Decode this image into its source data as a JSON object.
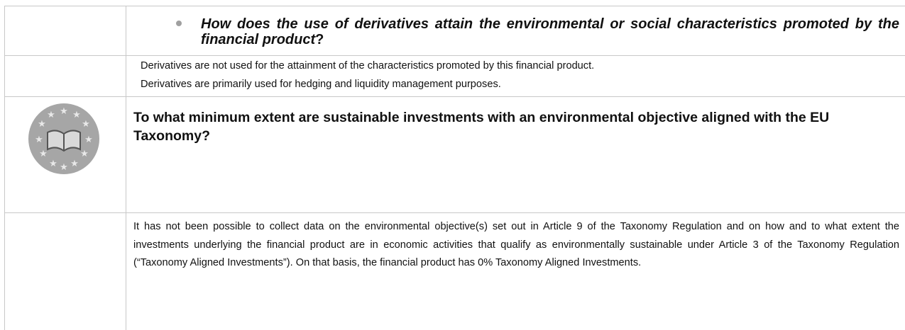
{
  "question_bullet": {
    "text": "How does the use of derivatives attain the environmental or social characteristics promoted by the financial product",
    "end": "?"
  },
  "derivatives_answer": [
    "Derivatives are not used for the attainment of the characteristics promoted by this financial product.",
    "Derivatives are primarily used for hedging and liquidity management purposes."
  ],
  "taxonomy_question": "To what minimum extent are sustainable investments with an environmental objective aligned with the EU Taxonomy?",
  "taxonomy_answer": "It has not been possible to collect data on the environmental objective(s) set out in Article 9 of the Taxonomy Regulation and on how and to what extent the investments underlying the financial product are in economic activities that qualify as environmentally sustainable under Article 3 of the Taxonomy Regulation (“Taxonomy Aligned Investments”). On that basis, the financial product has 0% Taxonomy Aligned Investments."
}
